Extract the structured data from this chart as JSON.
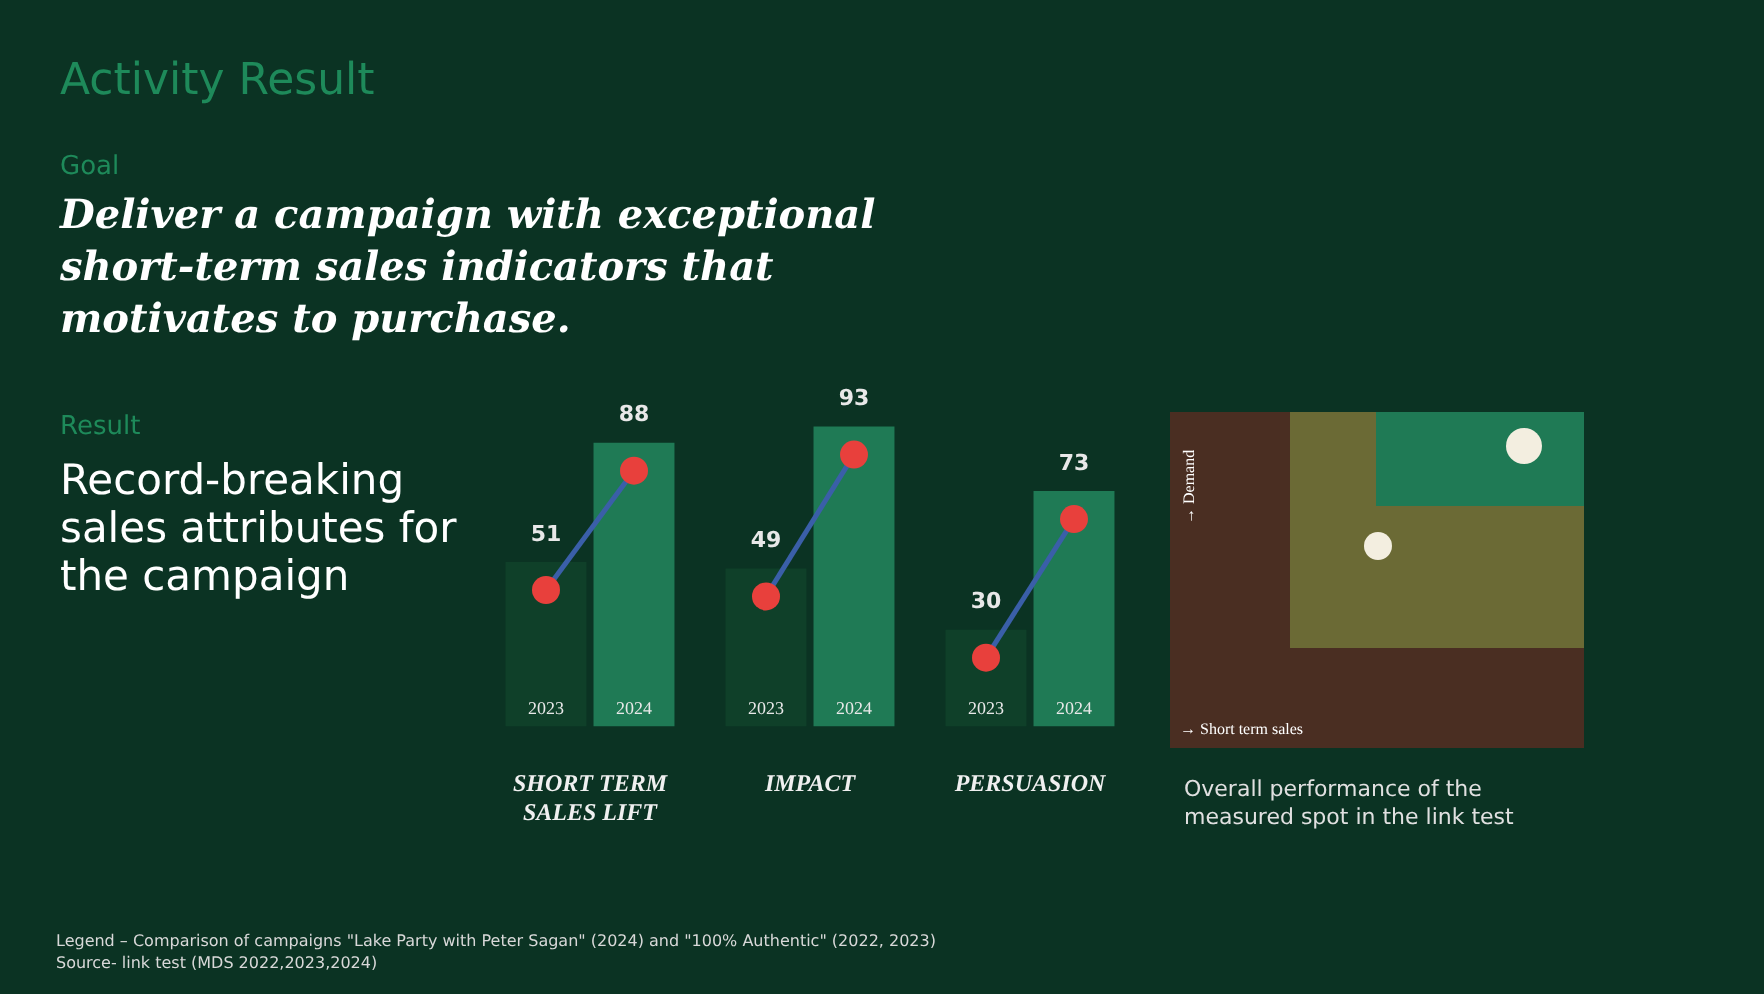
{
  "chart_data": {
    "type": "bar",
    "title": "Activity Result",
    "subtitle": "Deliver a campaign with exceptional short-term sales indicators that motivates to purchase.",
    "categories": [
      "SHORT TERM SALES LIFT",
      "IMPACT",
      "PERSUASION"
    ],
    "series": [
      {
        "name": "2023",
        "color": "#0f4029",
        "values": [
          51,
          49,
          30
        ]
      },
      {
        "name": "2024",
        "color": "#1f7a55",
        "values": [
          88,
          93,
          73
        ]
      }
    ],
    "data_labels": true,
    "tick_labels": "x",
    "grid": false,
    "legend": false,
    "annotations": [
      "Goal",
      "Result",
      "Record-breaking sales attributes for the campaign",
      "→ Demand",
      "→ Short term sales",
      "Overall performance of the measured spot in the link test",
      "Legend – Comparison of campaigns \"Lake Party with Peter Sagan\" (2024) and \"100% Authentic\" (2022, 2023)",
      "Source- link test (MDS 2022,2023,2024)"
    ]
  }
}
